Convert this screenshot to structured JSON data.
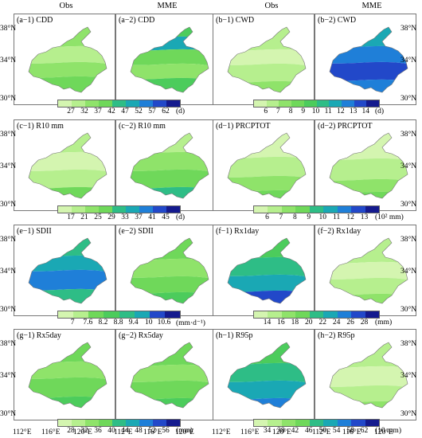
{
  "headers": [
    "Obs",
    "MME",
    "Obs",
    "MME"
  ],
  "lat_labels": [
    "38°N",
    "34°N",
    "30°N"
  ],
  "lon_labels": [
    "112°E",
    "116°E",
    "120°E",
    "112°E",
    "116°E",
    "120°E",
    "112°E",
    "116°E",
    "120°E",
    "112°E",
    "116°E",
    "120°E"
  ],
  "panels": [
    {
      "label": "(a−1) CDD",
      "palette": "green_blue_a",
      "shade": "cdd_obs"
    },
    {
      "label": "(a−2) CDD",
      "palette": "green_blue_a",
      "shade": "cdd_mme"
    },
    {
      "label": "(b−1) CWD",
      "palette": "green_blue_b",
      "shade": "cwd_obs"
    },
    {
      "label": "(b−2) CWD",
      "palette": "green_blue_b",
      "shade": "cwd_mme"
    },
    {
      "label": "(c−1) R10 mm",
      "palette": "green_blue_a",
      "shade": "r10_obs"
    },
    {
      "label": "(c−2) R10 mm",
      "palette": "green_blue_a",
      "shade": "r10_mme"
    },
    {
      "label": "(d−1) PRCPTOT",
      "palette": "green_blue_b",
      "shade": "prcp_obs"
    },
    {
      "label": "(d−2) PRCPTOT",
      "palette": "green_blue_b",
      "shade": "prcp_mme"
    },
    {
      "label": "(e−1) SDII",
      "palette": "green_blue_a",
      "shade": "sdii_obs"
    },
    {
      "label": "(e−2) SDII",
      "palette": "green_blue_a",
      "shade": "sdii_mme"
    },
    {
      "label": "(f−1) Rx1day",
      "palette": "green_blue_b",
      "shade": "rx1_obs"
    },
    {
      "label": "(f−2) Rx1day",
      "palette": "green_blue_b",
      "shade": "rx1_mme"
    },
    {
      "label": "(g−1) Rx5day",
      "palette": "green_blue_a",
      "shade": "rx5_obs"
    },
    {
      "label": "(g−2) Rx5day",
      "palette": "green_blue_a",
      "shade": "rx5_mme"
    },
    {
      "label": "(h−1) R95p",
      "palette": "green_blue_b",
      "shade": "r95_obs"
    },
    {
      "label": "(h−2) R95p",
      "palette": "green_blue_b",
      "shade": "r95_mme"
    }
  ],
  "colorbars": [
    {
      "ticks": [
        "27",
        "32",
        "37",
        "42",
        "47",
        "52",
        "57",
        "62"
      ],
      "unit": "(d)"
    },
    {
      "ticks": [
        "6",
        "7",
        "8",
        "9",
        "10",
        "11",
        "12",
        "13",
        "14"
      ],
      "unit": "(d)"
    },
    {
      "ticks": [
        "17",
        "21",
        "25",
        "29",
        "33",
        "37",
        "41",
        "45"
      ],
      "unit": "(d)"
    },
    {
      "ticks": [
        "6",
        "7",
        "8",
        "9",
        "10",
        "11",
        "12",
        "13"
      ],
      "unit": "(10² mm)"
    },
    {
      "ticks": [
        "7",
        "7.6",
        "8.2",
        "8.8",
        "9.4",
        "10",
        "10.6"
      ],
      "unit": "(mm·d⁻¹)"
    },
    {
      "ticks": [
        "14",
        "16",
        "18",
        "20",
        "22",
        "24",
        "26",
        "28"
      ],
      "unit": "(mm)"
    },
    {
      "ticks": [
        "28",
        "32",
        "36",
        "40",
        "44",
        "48",
        "52",
        "56"
      ],
      "unit": "(mm)"
    },
    {
      "ticks": [
        "34",
        "38",
        "42",
        "46",
        "50",
        "54",
        "58",
        "62"
      ],
      "unit": "(10 mm)"
    }
  ],
  "colors": {
    "c0": "#d4f5b0",
    "c1": "#b6ef8e",
    "c2": "#8fe36a",
    "c3": "#6fd85a",
    "c4": "#4ccc5c",
    "c5": "#2ebd86",
    "c6": "#1aa8b4",
    "c7": "#1f7fd8",
    "c8": "#2248c9",
    "c9": "#141a8e"
  }
}
